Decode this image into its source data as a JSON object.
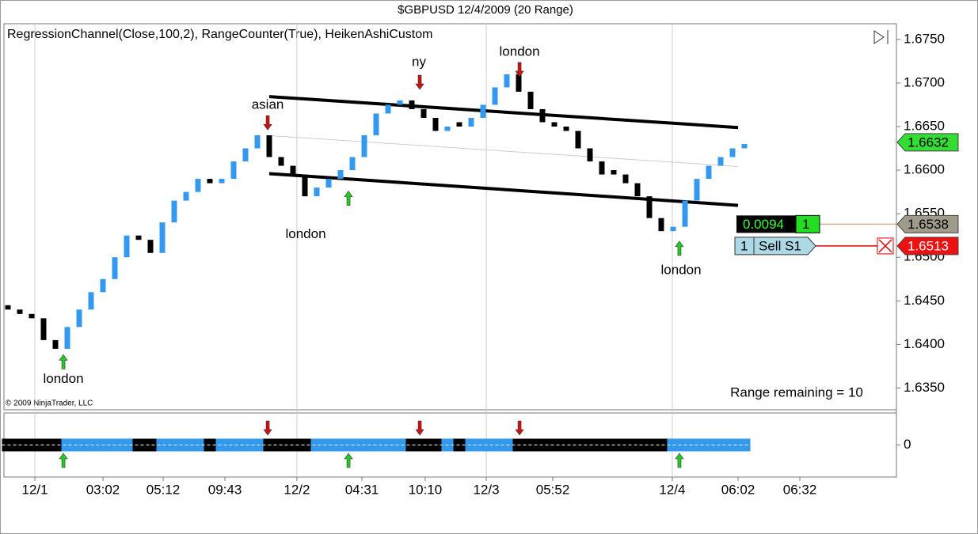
{
  "chart_data": {
    "type": "candlestick",
    "title": "$GBPUSD  12/4/2009 (20 Range)",
    "indicators": "RegressionChannel(Close,100,2),  RangeCounter(True), HeikenAshiCustom",
    "copyright": "© 2009 NinjaTrader, LLC",
    "range_text": "Range remaining = 10",
    "up_color": "#3399ee",
    "down_color": "#000000",
    "open": [
      1.6445,
      1.644,
      1.6435,
      1.643,
      1.6405,
      1.6395,
      1.642,
      1.644,
      1.646,
      1.6475,
      1.65,
      1.6525,
      1.652,
      1.6505,
      1.654,
      1.6565,
      1.6575,
      1.659,
      1.6585,
      1.659,
      1.661,
      1.6625,
      1.664,
      1.6615,
      1.6605,
      1.6595,
      1.657,
      1.658,
      1.659,
      1.66,
      1.6615,
      1.664,
      1.6665,
      1.6675,
      1.668,
      1.667,
      1.666,
      1.6645,
      1.6655,
      1.665,
      1.666,
      1.6675,
      1.6695,
      1.671,
      1.669,
      1.667,
      1.6655,
      1.665,
      1.6645,
      1.6625,
      1.661,
      1.66,
      1.6595,
      1.6585,
      1.657,
      1.6545,
      1.653,
      1.6535,
      1.6565,
      1.659,
      1.6605,
      1.6615,
      1.6625
    ],
    "close": [
      1.644,
      1.6435,
      1.643,
      1.6405,
      1.6395,
      1.642,
      1.644,
      1.646,
      1.6475,
      1.65,
      1.6525,
      1.652,
      1.6505,
      1.654,
      1.6565,
      1.6575,
      1.659,
      1.6585,
      1.659,
      1.661,
      1.6625,
      1.664,
      1.6615,
      1.6605,
      1.6595,
      1.657,
      1.658,
      1.659,
      1.66,
      1.6615,
      1.664,
      1.6665,
      1.6675,
      1.668,
      1.667,
      1.666,
      1.6645,
      1.665,
      1.665,
      1.666,
      1.6675,
      1.6695,
      1.671,
      1.669,
      1.667,
      1.6655,
      1.665,
      1.6645,
      1.6625,
      1.661,
      1.6595,
      1.6595,
      1.6585,
      1.657,
      1.6545,
      1.653,
      1.6535,
      1.6565,
      1.659,
      1.6605,
      1.6615,
      1.6625,
      1.663
    ],
    "xlim": [
      -0.333,
      74.8
    ],
    "xticks": [
      {
        "value": 2.27,
        "label": "12/1"
      },
      {
        "value": 8,
        "label": "03:02"
      },
      {
        "value": 13.07,
        "label": "05:12"
      },
      {
        "value": 18.27,
        "label": "09:43"
      },
      {
        "value": 24.33,
        "label": "12/2"
      },
      {
        "value": 29.8,
        "label": "04:31"
      },
      {
        "value": 35.13,
        "label": "10:10"
      },
      {
        "value": 40.27,
        "label": "12/3"
      },
      {
        "value": 45.87,
        "label": "05:52"
      },
      {
        "value": 55.93,
        "label": "12/4"
      },
      {
        "value": 61.47,
        "label": "06:02"
      },
      {
        "value": 66.67,
        "label": "06:32"
      }
    ],
    "ylim": [
      1.6325,
      1.6768
    ],
    "yticks": [
      {
        "value": 1.635,
        "label": "1.6350"
      },
      {
        "value": 1.64,
        "label": "1.6400"
      },
      {
        "value": 1.645,
        "label": "1.6450"
      },
      {
        "value": 1.65,
        "label": "1.6500"
      },
      {
        "value": 1.655,
        "label": "1.6550"
      },
      {
        "value": 1.66,
        "label": "1.6600"
      },
      {
        "value": 1.665,
        "label": "1.6650"
      },
      {
        "value": 1.67,
        "label": "1.6700"
      },
      {
        "value": 1.675,
        "label": "1.6750"
      }
    ],
    "regression_channel": {
      "x": [
        22,
        61.47
      ],
      "upper": [
        1.66844,
        1.66489
      ],
      "middle": [
        1.66397,
        1.66042
      ],
      "lower": [
        1.6596,
        1.65596
      ]
    },
    "annotations": [
      {
        "text": "asian",
        "x": 21.87,
        "y": 1.66744
      },
      {
        "text": "london",
        "x": 25.07,
        "y": 1.65259
      },
      {
        "text": "ny",
        "x": 34.6,
        "y": 1.67236
      },
      {
        "text": "london",
        "x": 43.07,
        "y": 1.67354
      },
      {
        "text": "london",
        "x": 4.67,
        "y": 1.636
      },
      {
        "text": "london",
        "x": 56.67,
        "y": 1.64849
      }
    ],
    "signals": [
      {
        "x": 21.87,
        "y": 1.66543,
        "direction": "down"
      },
      {
        "x": 34.67,
        "y": 1.67008,
        "direction": "down"
      },
      {
        "x": 43.07,
        "y": 1.67154,
        "direction": "down"
      },
      {
        "x": 4.67,
        "y": 1.63801,
        "direction": "up"
      },
      {
        "x": 28.67,
        "y": 1.65678,
        "direction": "up"
      },
      {
        "x": 56.53,
        "y": 1.65104,
        "direction": "up"
      }
    ],
    "last_price": 1.6632,
    "position": {
      "pnl": 0.0094,
      "quantity": 1,
      "entry": 1.6538
    },
    "order": {
      "quantity": 1,
      "label": "Sell S1",
      "price": 1.6513
    },
    "lower_panel": {
      "ylim": [
        -1,
        1
      ],
      "yticks": [
        0
      ]
    }
  }
}
